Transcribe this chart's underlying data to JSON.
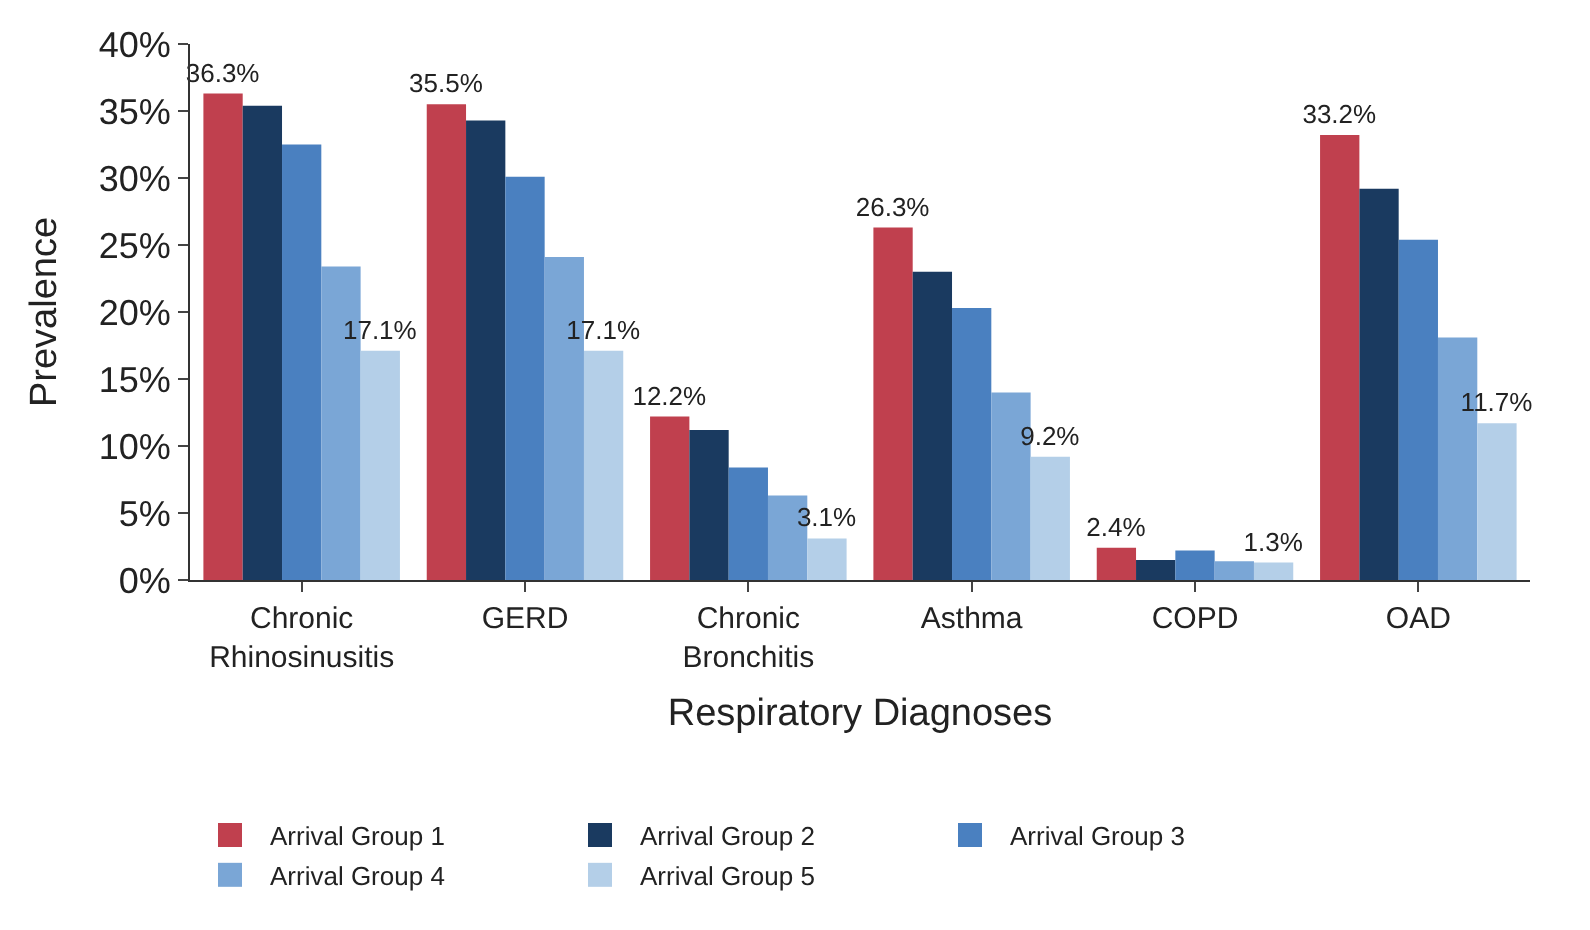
{
  "chart_data": {
    "type": "bar",
    "xlabel": "Respiratory Diagnoses",
    "ylabel": "Prevalence",
    "categories": [
      "Chronic Rhinosinusitis",
      "GERD",
      "Chronic Bronchitis",
      "Asthma",
      "COPD",
      "OAD"
    ],
    "series": [
      {
        "name": "Arrival Group 1",
        "color": "#c0404e",
        "values": [
          36.3,
          35.5,
          12.2,
          26.3,
          2.4,
          33.2
        ],
        "value_labels": [
          "36.3%",
          "35.5%",
          "12.2%",
          "26.3%",
          "2.4%",
          "33.2%"
        ]
      },
      {
        "name": "Arrival Group 2",
        "color": "#1a3a60",
        "values": [
          35.4,
          34.3,
          11.2,
          23.0,
          1.5,
          29.2
        ]
      },
      {
        "name": "Arrival Group 3",
        "color": "#4a80c0",
        "values": [
          32.5,
          30.1,
          8.4,
          20.3,
          2.2,
          25.4
        ]
      },
      {
        "name": "Arrival Group 4",
        "color": "#7aa6d6",
        "values": [
          23.4,
          24.1,
          6.3,
          14.0,
          1.4,
          18.1
        ]
      },
      {
        "name": "Arrival Group 5",
        "color": "#b4cfe8",
        "values": [
          17.1,
          17.1,
          3.1,
          9.2,
          1.3,
          11.7
        ],
        "value_labels": [
          "17.1%",
          "17.1%",
          "3.1%",
          "9.2%",
          "1.3%",
          "11.7%"
        ]
      }
    ],
    "ylim": [
      0,
      40
    ],
    "yticks": [
      {
        "value": 0,
        "label": "0%"
      },
      {
        "value": 5,
        "label": "5%"
      },
      {
        "value": 10,
        "label": "10%"
      },
      {
        "value": 15,
        "label": "15%"
      },
      {
        "value": 20,
        "label": "20%"
      },
      {
        "value": 25,
        "label": "25%"
      },
      {
        "value": 30,
        "label": "30%"
      },
      {
        "value": 35,
        "label": "35%"
      },
      {
        "value": 40,
        "label": "40%"
      }
    ],
    "legend": "bottom"
  }
}
